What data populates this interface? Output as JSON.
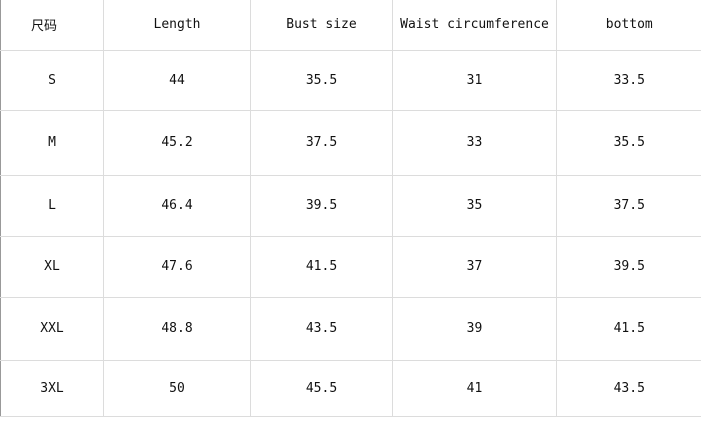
{
  "table": {
    "header": [
      "尺码",
      "Length",
      "Bust size",
      "Waist circumference",
      "bottom"
    ],
    "rows": [
      [
        "S",
        "44",
        "35.5",
        "31",
        "33.5"
      ],
      [
        "M",
        "45.2",
        "37.5",
        "33",
        "35.5"
      ],
      [
        "L",
        "46.4",
        "39.5",
        "35",
        "37.5"
      ],
      [
        "XL",
        "47.6",
        "41.5",
        "37",
        "39.5"
      ],
      [
        "XXL",
        "48.8",
        "43.5",
        "39",
        "41.5"
      ],
      [
        "3XL",
        "50",
        "45.5",
        "41",
        "43.5"
      ]
    ]
  }
}
